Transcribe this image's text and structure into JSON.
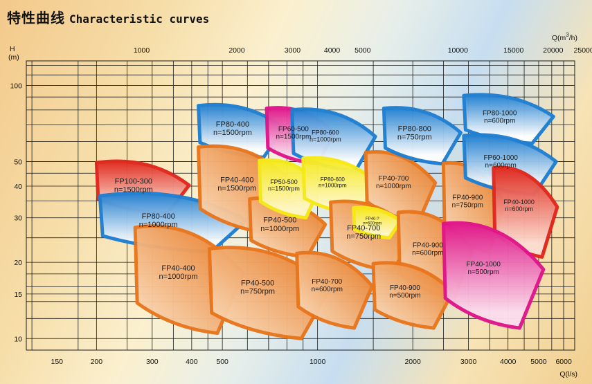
{
  "title": {
    "cn": "特性曲线",
    "en": "Characteristic curves"
  },
  "chart_data": {
    "type": "area",
    "title": "特性曲线 Characteristic curves",
    "y_axis": {
      "label_line1": "H",
      "label_line2": "(m)",
      "scale": "log",
      "range": [
        9,
        125
      ],
      "ticks": [
        10,
        15,
        20,
        30,
        40,
        50,
        100
      ]
    },
    "x_axis_bottom": {
      "label": "Q(l/s)",
      "scale": "log",
      "range": [
        120,
        6500
      ],
      "ticks": [
        150,
        200,
        300,
        400,
        500,
        1000,
        2000,
        3000,
        4000,
        5000,
        6000
      ]
    },
    "x_axis_top": {
      "label_prefix": "Q(m",
      "label_sup": "3",
      "label_suffix": "/h)",
      "ticks": [
        1000,
        2000,
        3000,
        4000,
        5000,
        10000,
        15000,
        20000,
        25000
      ]
    },
    "grid": true,
    "colors": {
      "orange": "#e8761d",
      "orange_light": "#fbe2c6",
      "blue": "#1f7fd1",
      "blue_light": "#ffffff",
      "red": "#e0281d",
      "red_light": "#fcdcd0",
      "magenta": "#e0158a",
      "magenta_light": "#fbdcec",
      "yellow": "#f6ea18",
      "yellow_light": "#fff8c8"
    },
    "series": [
      {
        "model": "FP100-300",
        "speed": "n=1500rpm",
        "color": "red",
        "q": [
          200,
          380
        ],
        "h": [
          31,
          50
        ],
        "bulge": 0.12,
        "font": 11
      },
      {
        "model": "FP80-400",
        "speed": "n=1000rpm",
        "color": "blue",
        "q": [
          205,
          565
        ],
        "h": [
          22,
          37
        ],
        "bulge": 0.12,
        "font": 11
      },
      {
        "model": "FP80-400",
        "speed": "n=1500rpm",
        "color": "blue",
        "q": [
          420,
          760
        ],
        "h": [
          52,
          84
        ],
        "bulge": 0.1,
        "font": 11
      },
      {
        "model": "FP40-400",
        "speed": "n=1500rpm",
        "color": "orange",
        "q": [
          420,
          820
        ],
        "h": [
          26,
          58
        ],
        "bulge": 0.1,
        "font": 11
      },
      {
        "model": "FP40-400",
        "speed": "n=1000rpm",
        "color": "orange",
        "q": [
          265,
          560
        ],
        "h": [
          10.5,
          28
        ],
        "bulge": 0.12,
        "font": 11
      },
      {
        "model": "FP40-500",
        "speed": "n=750rpm",
        "color": "orange",
        "q": [
          455,
          1050
        ],
        "h": [
          10,
          23
        ],
        "bulge": 0.1,
        "font": 11
      },
      {
        "model": "FP40-500",
        "speed": "n=1000rpm",
        "color": "orange",
        "q": [
          610,
          1030
        ],
        "h": [
          21,
          36
        ],
        "bulge": 0.1,
        "font": 11
      },
      {
        "model": "FP60-500",
        "speed": "n=1500rpm",
        "color": "magenta",
        "q": [
          690,
          1100
        ],
        "h": [
          49,
          82
        ],
        "bulge": 0.1,
        "font": 10
      },
      {
        "model": "FP50-500",
        "speed": "n=1500rpm",
        "color": "yellow",
        "q": [
          655,
          1000
        ],
        "h": [
          30,
          51
        ],
        "bulge": 0.1,
        "font": 9
      },
      {
        "model": "FP80-600",
        "speed": "n=1000rpm",
        "color": "blue",
        "q": [
          830,
          1480
        ],
        "h": [
          46,
          81
        ],
        "bulge": 0.08,
        "font": 9
      },
      {
        "model": "FP80-600",
        "speed": "n=1000rpm",
        "color": "yellow",
        "q": [
          900,
          1500
        ],
        "h": [
          31,
          52
        ],
        "bulge": 0.08,
        "font": 8
      },
      {
        "model": "FP40-700",
        "speed": "n=1000rpm",
        "color": "orange",
        "q": [
          1420,
          2300
        ],
        "h": [
          29,
          55
        ],
        "bulge": 0.1,
        "font": 10
      },
      {
        "model": "FP40-700",
        "speed": "n=750rpm",
        "color": "orange",
        "q": [
          1100,
          1950
        ],
        "h": [
          18.5,
          35
        ],
        "bulge": 0.1,
        "font": 11
      },
      {
        "model": "FP40-700",
        "speed": "n=600rpm",
        "color": "orange",
        "q": [
          860,
          1450
        ],
        "h": [
          11,
          22
        ],
        "bulge": 0.1,
        "font": 10
      },
      {
        "model": "FP40-?",
        "speed": "n=600rpm",
        "color": "yellow",
        "q": [
          1300,
          1800
        ],
        "h": [
          25,
          33
        ],
        "bulge": 0.06,
        "font": 6
      },
      {
        "model": "FP80-800",
        "speed": "n=750rpm",
        "color": "blue",
        "q": [
          1620,
          2760
        ],
        "h": [
          49,
          82
        ],
        "bulge": 0.08,
        "font": 11
      },
      {
        "model": "FP40-900",
        "speed": "n=750rpm",
        "color": "orange",
        "q": [
          2500,
          3800
        ],
        "h": [
          22,
          50
        ],
        "bulge": 0.1,
        "font": 10
      },
      {
        "model": "FP40-900",
        "speed": "n=600rpm",
        "color": "orange",
        "q": [
          1800,
          3000
        ],
        "h": [
          14.5,
          32
        ],
        "bulge": 0.1,
        "font": 10
      },
      {
        "model": "FP40-900",
        "speed": "n=500rpm",
        "color": "orange",
        "q": [
          1500,
          2600
        ],
        "h": [
          11,
          20
        ],
        "bulge": 0.1,
        "font": 10
      },
      {
        "model": "FP80-1000",
        "speed": "n=600rpm",
        "color": "blue",
        "q": [
          2900,
          5400
        ],
        "h": [
          59,
          92
        ],
        "bulge": 0.08,
        "font": 10
      },
      {
        "model": "FP60-1000",
        "speed": "n=600rpm",
        "color": "blue",
        "q": [
          2900,
          5500
        ],
        "h": [
          37,
          64
        ],
        "bulge": 0.08,
        "font": 10
      },
      {
        "model": "FP40-1000",
        "speed": "n=600rpm",
        "color": "red",
        "q": [
          3600,
          5600
        ],
        "h": [
          21,
          48
        ],
        "bulge": 0.08,
        "font": 9
      },
      {
        "model": "FP40-1000",
        "speed": "n=500rpm",
        "color": "magenta",
        "q": [
          2500,
          5000
        ],
        "h": [
          11,
          29
        ],
        "bulge": 0.08,
        "font": 10
      }
    ]
  }
}
